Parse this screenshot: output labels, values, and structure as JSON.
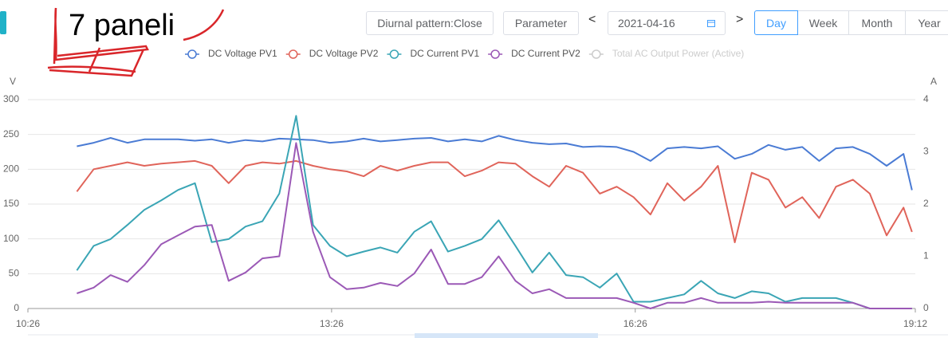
{
  "ui": {
    "annotation": "7 paneli",
    "pattern_button": "Diurnal pattern:Close",
    "parameter_button": "Parameter",
    "prev": "<",
    "next": ">",
    "date": "2021-04-16",
    "periods": [
      "Day",
      "Week",
      "Month",
      "Year"
    ],
    "selected_period": "Day"
  },
  "chart_data": {
    "type": "line",
    "y_label": "V",
    "y2_label": "A",
    "x": [
      "10:55",
      "11:05",
      "11:15",
      "11:25",
      "11:35",
      "11:45",
      "11:55",
      "12:05",
      "12:15",
      "12:25",
      "12:35",
      "12:45",
      "12:55",
      "13:05",
      "13:15",
      "13:25",
      "13:35",
      "13:45",
      "13:55",
      "14:05",
      "14:15",
      "14:25",
      "14:35",
      "14:45",
      "14:55",
      "15:05",
      "15:15",
      "15:25",
      "15:35",
      "15:45",
      "15:55",
      "16:05",
      "16:15",
      "16:25",
      "16:35",
      "16:45",
      "16:55",
      "17:05",
      "17:15",
      "17:25",
      "17:35",
      "17:45",
      "17:55",
      "18:05",
      "18:15",
      "18:25",
      "18:35",
      "18:45",
      "18:55",
      "19:05",
      "19:10"
    ],
    "xlim": [
      "10:26",
      "19:12"
    ],
    "xticks": [
      "10:26",
      "13:26",
      "16:26",
      "19:12"
    ],
    "ylim": [
      0,
      300
    ],
    "yticks": [
      0,
      50,
      100,
      150,
      200,
      250,
      300
    ],
    "y2lim": [
      0,
      4
    ],
    "y2ticks": [
      0,
      1,
      2,
      3,
      4
    ],
    "grid": true,
    "legend": "top",
    "series": [
      {
        "name": "DC Voltage PV1",
        "color": "#4a7bd4",
        "values": [
          233,
          238,
          245,
          238,
          243,
          243,
          243,
          241,
          243,
          238,
          242,
          240,
          244,
          243,
          242,
          238,
          240,
          244,
          240,
          242,
          244,
          245,
          240,
          243,
          240,
          248,
          242,
          238,
          236,
          237,
          232,
          233,
          232,
          225,
          212,
          230,
          232,
          230,
          233,
          215,
          222,
          235,
          228,
          232,
          212,
          230,
          232,
          222,
          205,
          222,
          170
        ]
      },
      {
        "name": "DC Voltage PV2",
        "color": "#e0645a",
        "values": [
          168,
          200,
          205,
          210,
          205,
          208,
          210,
          212,
          205,
          180,
          205,
          210,
          208,
          212,
          205,
          200,
          197,
          190,
          205,
          198,
          205,
          210,
          210,
          190,
          198,
          210,
          208,
          190,
          175,
          205,
          195,
          165,
          175,
          160,
          135,
          180,
          155,
          175,
          205,
          95,
          195,
          185,
          145,
          160,
          130,
          175,
          185,
          165,
          105,
          145,
          110
        ]
      },
      {
        "name": "DC Current PV1",
        "color": "#3aa5b5",
        "axis": "y2",
        "values": [
          0.73,
          1.2,
          1.33,
          1.6,
          1.89,
          2.07,
          2.27,
          2.4,
          1.27,
          1.33,
          1.57,
          1.67,
          2.2,
          3.69,
          1.6,
          1.2,
          1.0,
          1.09,
          1.17,
          1.07,
          1.47,
          1.67,
          1.09,
          1.2,
          1.33,
          1.69,
          1.2,
          0.69,
          1.07,
          0.64,
          0.6,
          0.4,
          0.67,
          0.13,
          0.13,
          0.2,
          0.27,
          0.53,
          0.29,
          0.2,
          0.33,
          0.29,
          0.13,
          0.2,
          0.2,
          0.2,
          0.11,
          0,
          0,
          0,
          0
        ]
      },
      {
        "name": "DC Current PV2",
        "color": "#9b59b6",
        "axis": "y2",
        "values": [
          0.29,
          0.4,
          0.64,
          0.51,
          0.83,
          1.23,
          1.4,
          1.57,
          1.6,
          0.53,
          0.69,
          0.96,
          1.0,
          3.17,
          1.47,
          0.6,
          0.37,
          0.4,
          0.49,
          0.43,
          0.67,
          1.13,
          0.47,
          0.47,
          0.6,
          1.0,
          0.53,
          0.29,
          0.37,
          0.2,
          0.2,
          0.2,
          0.2,
          0.11,
          0,
          0.11,
          0.11,
          0.2,
          0.11,
          0.11,
          0.11,
          0.13,
          0.11,
          0.11,
          0.11,
          0.11,
          0.11,
          0,
          0,
          0,
          0
        ]
      },
      {
        "name": "Total AC Output Power (Active)",
        "color": "#cccccc",
        "hidden": true
      }
    ]
  }
}
